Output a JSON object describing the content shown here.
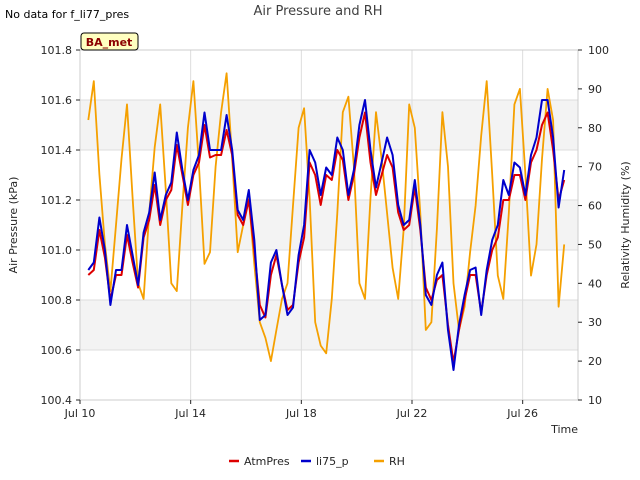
{
  "note": "No data for f_li77_pres",
  "badge": "BA_met",
  "chart_data": {
    "type": "line",
    "title": "Air Pressure and RH",
    "xlabel": "Time",
    "ylabel": "Air Pressure (kPa)",
    "y2label": "Relativity Humidity (%)",
    "x_ticks": [
      "Jul 10",
      "Jul 14",
      "Jul 18",
      "Jul 22",
      "Jul 26"
    ],
    "x_tick_days": [
      10,
      14,
      18,
      22,
      26
    ],
    "xlim": [
      10,
      28
    ],
    "ylim": [
      100.4,
      101.8
    ],
    "y_ticks": [
      "100.4",
      "100.6",
      "100.8",
      "101.0",
      "101.2",
      "101.4",
      "101.6",
      "101.8"
    ],
    "y2lim": [
      10,
      100
    ],
    "y2_ticks": [
      "10",
      "20",
      "30",
      "40",
      "50",
      "60",
      "70",
      "80",
      "90",
      "100"
    ],
    "grid": true,
    "legend_position": "bottom-center",
    "colors": {
      "AtmPres": "#dd0000",
      "li75_p": "#0000cc",
      "RH": "#f5a000"
    },
    "series": [
      {
        "name": "AtmPres",
        "axis": "left",
        "x": [
          10.3,
          10.5,
          10.7,
          10.9,
          11.1,
          11.3,
          11.5,
          11.7,
          11.9,
          12.1,
          12.3,
          12.5,
          12.7,
          12.9,
          13.1,
          13.3,
          13.5,
          13.7,
          13.9,
          14.1,
          14.3,
          14.5,
          14.7,
          14.9,
          15.1,
          15.3,
          15.5,
          15.7,
          15.9,
          16.1,
          16.3,
          16.5,
          16.7,
          16.9,
          17.1,
          17.3,
          17.5,
          17.7,
          17.9,
          18.1,
          18.3,
          18.5,
          18.7,
          18.9,
          19.1,
          19.3,
          19.5,
          19.7,
          19.9,
          20.1,
          20.3,
          20.5,
          20.7,
          20.9,
          21.1,
          21.3,
          21.5,
          21.7,
          21.9,
          22.1,
          22.3,
          22.5,
          22.7,
          22.9,
          23.1,
          23.3,
          23.5,
          23.7,
          23.9,
          24.1,
          24.3,
          24.5,
          24.7,
          24.9,
          25.1,
          25.3,
          25.5,
          25.7,
          25.9,
          26.1,
          26.3,
          26.5,
          26.7,
          26.9,
          27.1,
          27.3,
          27.5
        ],
        "values": [
          100.9,
          100.92,
          101.08,
          100.97,
          100.8,
          100.9,
          100.9,
          101.06,
          100.95,
          100.85,
          101.05,
          101.12,
          101.26,
          101.1,
          101.2,
          101.24,
          101.42,
          101.3,
          101.18,
          101.3,
          101.35,
          101.5,
          101.37,
          101.38,
          101.38,
          101.48,
          101.38,
          101.14,
          101.1,
          101.2,
          101.0,
          100.78,
          100.73,
          100.9,
          100.98,
          100.86,
          100.76,
          100.78,
          100.95,
          101.05,
          101.35,
          101.3,
          101.18,
          101.3,
          101.28,
          101.4,
          101.36,
          101.2,
          101.3,
          101.45,
          101.55,
          101.35,
          101.22,
          101.3,
          101.38,
          101.33,
          101.15,
          101.08,
          101.1,
          101.25,
          101.08,
          100.85,
          100.8,
          100.88,
          100.9,
          100.7,
          100.55,
          100.68,
          100.8,
          100.9,
          100.9,
          100.75,
          100.9,
          101.0,
          101.05,
          101.2,
          101.2,
          101.3,
          101.3,
          101.2,
          101.35,
          101.4,
          101.5,
          101.55,
          101.4,
          101.2,
          101.28
        ],
        "color": "#dd0000"
      },
      {
        "name": "li75_p",
        "axis": "left",
        "x": [
          10.3,
          10.5,
          10.7,
          10.9,
          11.1,
          11.3,
          11.5,
          11.7,
          11.9,
          12.1,
          12.3,
          12.5,
          12.7,
          12.9,
          13.1,
          13.3,
          13.5,
          13.7,
          13.9,
          14.1,
          14.3,
          14.5,
          14.7,
          14.9,
          15.1,
          15.3,
          15.5,
          15.7,
          15.9,
          16.1,
          16.3,
          16.5,
          16.7,
          16.9,
          17.1,
          17.3,
          17.5,
          17.7,
          17.9,
          18.1,
          18.3,
          18.5,
          18.7,
          18.9,
          19.1,
          19.3,
          19.5,
          19.7,
          19.9,
          20.1,
          20.3,
          20.5,
          20.7,
          20.9,
          21.1,
          21.3,
          21.5,
          21.7,
          21.9,
          22.1,
          22.3,
          22.5,
          22.7,
          22.9,
          23.1,
          23.3,
          23.5,
          23.7,
          23.9,
          24.1,
          24.3,
          24.5,
          24.7,
          24.9,
          25.1,
          25.3,
          25.5,
          25.7,
          25.9,
          26.1,
          26.3,
          26.5,
          26.7,
          26.9,
          27.1,
          27.3,
          27.5
        ],
        "values": [
          100.92,
          100.95,
          101.13,
          101.0,
          100.78,
          100.92,
          100.92,
          101.1,
          100.98,
          100.86,
          101.07,
          101.15,
          101.31,
          101.12,
          101.22,
          101.27,
          101.47,
          101.32,
          101.2,
          101.32,
          101.38,
          101.55,
          101.4,
          101.4,
          101.4,
          101.54,
          101.4,
          101.16,
          101.12,
          101.24,
          101.04,
          100.72,
          100.74,
          100.95,
          101.0,
          100.86,
          100.74,
          100.77,
          100.98,
          101.1,
          101.4,
          101.35,
          101.22,
          101.33,
          101.3,
          101.45,
          101.4,
          101.22,
          101.32,
          101.5,
          101.6,
          101.4,
          101.25,
          101.35,
          101.45,
          101.38,
          101.18,
          101.1,
          101.12,
          101.28,
          101.1,
          100.82,
          100.78,
          100.9,
          100.95,
          100.68,
          100.52,
          100.7,
          100.82,
          100.92,
          100.93,
          100.74,
          100.92,
          101.04,
          101.1,
          101.28,
          101.22,
          101.35,
          101.33,
          101.22,
          101.38,
          101.45,
          101.6,
          101.6,
          101.45,
          101.17,
          101.32
        ],
        "color": "#0000cc"
      },
      {
        "name": "RH",
        "axis": "right",
        "x": [
          10.3,
          10.5,
          10.7,
          10.9,
          11.1,
          11.3,
          11.5,
          11.7,
          11.9,
          12.1,
          12.3,
          12.5,
          12.7,
          12.9,
          13.1,
          13.3,
          13.5,
          13.7,
          13.9,
          14.1,
          14.3,
          14.5,
          14.7,
          14.9,
          15.1,
          15.3,
          15.5,
          15.7,
          15.9,
          16.1,
          16.3,
          16.5,
          16.7,
          16.9,
          17.1,
          17.3,
          17.5,
          17.7,
          17.9,
          18.1,
          18.3,
          18.5,
          18.7,
          18.9,
          19.1,
          19.3,
          19.5,
          19.7,
          19.9,
          20.1,
          20.3,
          20.5,
          20.7,
          20.9,
          21.1,
          21.3,
          21.5,
          21.7,
          21.9,
          22.1,
          22.3,
          22.5,
          22.7,
          22.9,
          23.1,
          23.3,
          23.5,
          23.7,
          23.9,
          24.1,
          24.3,
          24.5,
          24.7,
          24.9,
          25.1,
          25.3,
          25.5,
          25.7,
          25.9,
          26.1,
          26.3,
          26.5,
          26.7,
          26.9,
          27.1,
          27.3,
          27.5
        ],
        "values": [
          82,
          92,
          68,
          50,
          38,
          55,
          72,
          86,
          62,
          40,
          36,
          58,
          75,
          86,
          64,
          40,
          38,
          60,
          80,
          92,
          70,
          45,
          48,
          70,
          84,
          94,
          72,
          48,
          55,
          62,
          45,
          30,
          26,
          20,
          28,
          36,
          40,
          60,
          80,
          85,
          62,
          30,
          24,
          22,
          36,
          58,
          84,
          88,
          70,
          40,
          36,
          62,
          84,
          72,
          58,
          44,
          36,
          54,
          86,
          80,
          58,
          28,
          30,
          54,
          84,
          70,
          40,
          28,
          34,
          48,
          60,
          78,
          92,
          68,
          42,
          36,
          58,
          86,
          90,
          68,
          42,
          50,
          72,
          90,
          82,
          34,
          50
        ],
        "color": "#f5a000"
      }
    ]
  }
}
